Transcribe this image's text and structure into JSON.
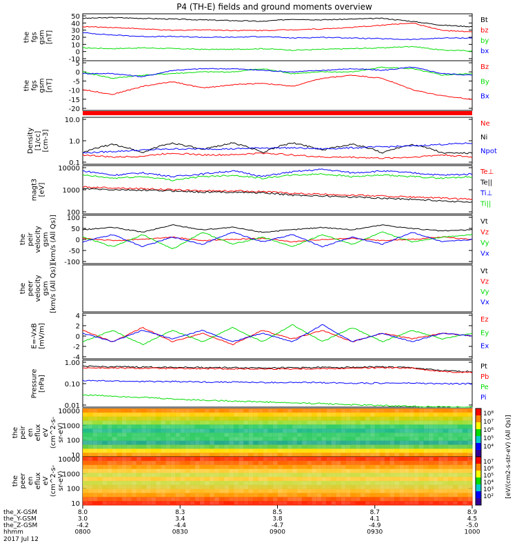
{
  "title": "P4 (TH-E) fields and ground moments overview",
  "colors": {
    "black": "#000000",
    "red": "#ff0000",
    "green": "#00dd00",
    "blue": "#0000ff"
  },
  "chart_data": [
    {
      "panel": "fgs",
      "type": "line",
      "ylabel": [
        "the",
        "fgs",
        "gsm",
        "[nT]"
      ],
      "yticks": [
        "50",
        "40",
        "30",
        "20",
        "10",
        "0",
        "-10"
      ],
      "ylim": [
        -10,
        52
      ],
      "series": [
        {
          "name": "Bt",
          "color": "black",
          "values": [
            46,
            47,
            46,
            45,
            44,
            43,
            42,
            45,
            44,
            45,
            46,
            42,
            37,
            35
          ]
        },
        {
          "name": "bz",
          "color": "red",
          "values": [
            35,
            34,
            32,
            30,
            31,
            30,
            30,
            31,
            32,
            34,
            37,
            40,
            30,
            28
          ]
        },
        {
          "name": "by",
          "color": "green",
          "values": [
            7,
            6,
            7,
            6,
            5,
            5,
            6,
            4,
            5,
            6,
            7,
            9,
            4,
            3
          ]
        },
        {
          "name": "bx",
          "color": "blue",
          "values": [
            27,
            24,
            22,
            22,
            21,
            21,
            22,
            20,
            21,
            20,
            19,
            18,
            20,
            20
          ]
        }
      ]
    },
    {
      "panel": "fgs_gsm",
      "type": "line",
      "ylabel": [
        "the",
        "fgs",
        "gsm",
        "[nT]"
      ],
      "yticks": [
        "5",
        "0",
        "-5",
        "-10",
        "-15",
        "-20"
      ],
      "ylim": [
        -23,
        8
      ],
      "series": [
        {
          "name": "Bz",
          "color": "red",
          "values": [
            -10,
            -13,
            -8,
            -5,
            -9,
            -7,
            -6,
            -8,
            -3,
            -1,
            -3,
            -10,
            -14,
            -16
          ]
        },
        {
          "name": "By",
          "color": "green",
          "values": [
            1,
            -3,
            -1,
            0,
            1,
            1,
            3,
            0,
            1,
            1,
            4,
            3,
            -1,
            0
          ]
        },
        {
          "name": "Bx",
          "color": "blue",
          "values": [
            0,
            0,
            -2,
            2,
            3,
            3,
            2,
            1,
            2,
            3,
            2,
            4,
            0,
            -1
          ]
        }
      ]
    },
    {
      "panel": "density",
      "type": "line",
      "log": true,
      "ylabel": [
        "Density",
        "[1/cc]",
        "[cm-3]"
      ],
      "yticks": [
        "10.0",
        "1.0",
        "0.1"
      ],
      "ylim": [
        0.1,
        10
      ],
      "series": [
        {
          "name": "Ne",
          "color": "red",
          "values": [
            0.25,
            0.2,
            0.22,
            0.3,
            0.25,
            0.25,
            0.3,
            0.25,
            0.2,
            0.2,
            0.18,
            0.2,
            0.25,
            0.2
          ]
        },
        {
          "name": "Ni",
          "color": "black",
          "values": [
            0.3,
            0.7,
            0.3,
            0.8,
            0.4,
            0.8,
            0.3,
            0.8,
            0.4,
            0.7,
            0.3,
            0.7,
            0.3,
            0.3
          ]
        },
        {
          "name": "Npot",
          "color": "blue",
          "values": [
            0.3,
            0.35,
            0.4,
            0.45,
            0.45,
            0.45,
            0.5,
            0.5,
            0.45,
            0.5,
            0.55,
            0.6,
            0.7,
            0.8
          ]
        }
      ]
    },
    {
      "panel": "temp",
      "type": "line",
      "log": true,
      "ylabel": [
        "magt3",
        "[eV]"
      ],
      "yticks": [
        "10000",
        "1000",
        "100"
      ],
      "ylim": [
        100,
        10000
      ],
      "series": [
        {
          "name": "Te⊥",
          "color": "red",
          "values": [
            1300,
            1200,
            1100,
            1000,
            900,
            900,
            850,
            700,
            650,
            600,
            550,
            500,
            450,
            400
          ]
        },
        {
          "name": "Te||",
          "color": "black",
          "values": [
            1100,
            1000,
            950,
            900,
            800,
            800,
            750,
            600,
            550,
            500,
            450,
            400,
            350,
            300
          ]
        },
        {
          "name": "Ti⊥",
          "color": "blue",
          "values": [
            6000,
            4000,
            5000,
            3500,
            4500,
            6000,
            3500,
            5500,
            7000,
            5000,
            6000,
            5000,
            4000,
            4500
          ]
        },
        {
          "name": "Ti||",
          "color": "green",
          "values": [
            4000,
            3000,
            3500,
            2500,
            3500,
            4000,
            3000,
            4000,
            4500,
            3500,
            4000,
            3500,
            3000,
            3500
          ]
        }
      ]
    },
    {
      "panel": "peir_velocity",
      "type": "line",
      "ylabel": [
        "the",
        "peir",
        "velocity",
        "gsm",
        "[km/s (All Qs)]"
      ],
      "yticks": [
        "100",
        "50",
        "0",
        "-50",
        "-100"
      ],
      "ylim": [
        -100,
        100
      ],
      "series": [
        {
          "name": "Vt",
          "color": "black",
          "values": [
            40,
            50,
            30,
            60,
            40,
            50,
            30,
            40,
            50,
            40,
            60,
            45,
            35,
            40
          ]
        },
        {
          "name": "Vz",
          "color": "red",
          "values": [
            5,
            -5,
            0,
            10,
            -5,
            0,
            5,
            -10,
            0,
            5,
            -5,
            0,
            10,
            0
          ]
        },
        {
          "name": "Vy",
          "color": "green",
          "values": [
            10,
            -30,
            20,
            -40,
            30,
            -20,
            10,
            -30,
            20,
            -20,
            30,
            -10,
            10,
            20
          ]
        },
        {
          "name": "Vx",
          "color": "blue",
          "values": [
            -10,
            20,
            -30,
            10,
            -20,
            30,
            -10,
            20,
            -30,
            10,
            -20,
            30,
            -10,
            0
          ]
        }
      ]
    },
    {
      "panel": "peer_velocity",
      "type": "line",
      "ylabel": [
        "the",
        "peer",
        "velocity",
        "gsm",
        "[km/s (All Qs)]"
      ],
      "yticks": [],
      "series": [
        {
          "name": "Vt",
          "color": "black",
          "values": []
        },
        {
          "name": "Vz",
          "color": "red",
          "values": []
        },
        {
          "name": "Vy",
          "color": "green",
          "values": []
        },
        {
          "name": "Vx",
          "color": "blue",
          "values": []
        }
      ]
    },
    {
      "panel": "efield",
      "type": "line",
      "ylabel": [
        "E=-VxB",
        "[mV/m]"
      ],
      "yticks": [
        "4",
        "2",
        "0",
        "-2",
        "-4"
      ],
      "ylim": [
        -4,
        4
      ],
      "series": [
        {
          "name": "Ez",
          "color": "red",
          "values": [
            1,
            -1,
            1.5,
            -1,
            0.5,
            -1.5,
            1,
            -0.5,
            1,
            -1,
            0.5,
            -0.5,
            0.5,
            0
          ]
        },
        {
          "name": "Ey",
          "color": "green",
          "values": [
            -1,
            1,
            -1.5,
            1,
            -1,
            1.5,
            -1,
            2,
            -1,
            1.5,
            -1,
            1,
            -0.5,
            0.5
          ]
        },
        {
          "name": "Ex",
          "color": "blue",
          "values": [
            0.5,
            -1,
            1,
            -0.5,
            1,
            -1,
            0.5,
            -1,
            2,
            -1,
            0.5,
            -1,
            0.5,
            0
          ]
        }
      ]
    },
    {
      "panel": "pressure",
      "type": "line",
      "log": true,
      "ylabel": [
        "Pressure",
        "[nPa]"
      ],
      "yticks": [
        "1.00",
        "0.10",
        "0.01"
      ],
      "ylim": [
        0.01,
        2
      ],
      "series": [
        {
          "name": "Pt",
          "color": "black",
          "values": [
            1.0,
            0.95,
            0.92,
            0.9,
            0.88,
            0.86,
            0.85,
            0.86,
            0.88,
            0.9,
            0.95,
            0.85,
            0.6,
            0.55
          ]
        },
        {
          "name": "Pb",
          "color": "red",
          "values": [
            0.85,
            0.82,
            0.8,
            0.78,
            0.76,
            0.75,
            0.74,
            0.75,
            0.77,
            0.8,
            0.85,
            0.8,
            0.55,
            0.5
          ]
        },
        {
          "name": "Pe",
          "color": "green",
          "values": [
            0.04,
            0.035,
            0.03,
            0.025,
            0.022,
            0.02,
            0.018,
            0.016,
            0.015,
            0.013,
            0.012,
            0.011,
            0.01,
            0.01
          ]
        },
        {
          "name": "Pi",
          "color": "blue",
          "values": [
            0.2,
            0.19,
            0.18,
            0.18,
            0.17,
            0.17,
            0.16,
            0.16,
            0.16,
            0.15,
            0.15,
            0.15,
            0.14,
            0.14
          ]
        }
      ]
    },
    {
      "panel": "peir_eflux",
      "type": "heatmap",
      "ylabel": [
        "the",
        "peir",
        "en",
        "eflux",
        "eV",
        "(cm^2-s-",
        "sr-eV)"
      ],
      "yticks": [
        "10000",
        "1000",
        "100",
        "10"
      ]
    },
    {
      "panel": "peer_eflux",
      "type": "heatmap",
      "ylabel": [
        "the",
        "peer",
        "en",
        "eflux",
        "eV",
        "(cm^2-s-",
        "sr-eV)"
      ],
      "yticks": [
        "10000",
        "1000",
        "100",
        "10"
      ]
    }
  ],
  "colorbar": {
    "label": "[eV/(cm2-s-str-eV) (All Qs)]",
    "top_ticks": [
      "10⁸",
      "10⁷",
      "10⁶",
      "10⁵",
      "10⁴"
    ],
    "bottom_ticks": [
      "10⁷",
      "10⁶",
      "10⁵",
      "10⁴",
      "10³",
      "10²"
    ]
  },
  "xaxis": {
    "row_labels": [
      "the_X-GSM",
      "the_Y-GSM",
      "the_Z-GSM",
      "hhmm"
    ],
    "date": "2017 Jul 12",
    "ticks": [
      {
        "values": [
          "8.0",
          "3.0",
          "-4.2",
          "0800"
        ]
      },
      {
        "values": [
          "8.3",
          "3.4",
          "-4.4",
          "0830"
        ]
      },
      {
        "values": [
          "8.5",
          "3.8",
          "-4.7",
          "0900"
        ]
      },
      {
        "values": [
          "8.7",
          "4.1",
          "-4.9",
          "0930"
        ]
      },
      {
        "values": [
          "8.9",
          "4.5",
          "-5.0",
          "1000"
        ]
      }
    ]
  }
}
